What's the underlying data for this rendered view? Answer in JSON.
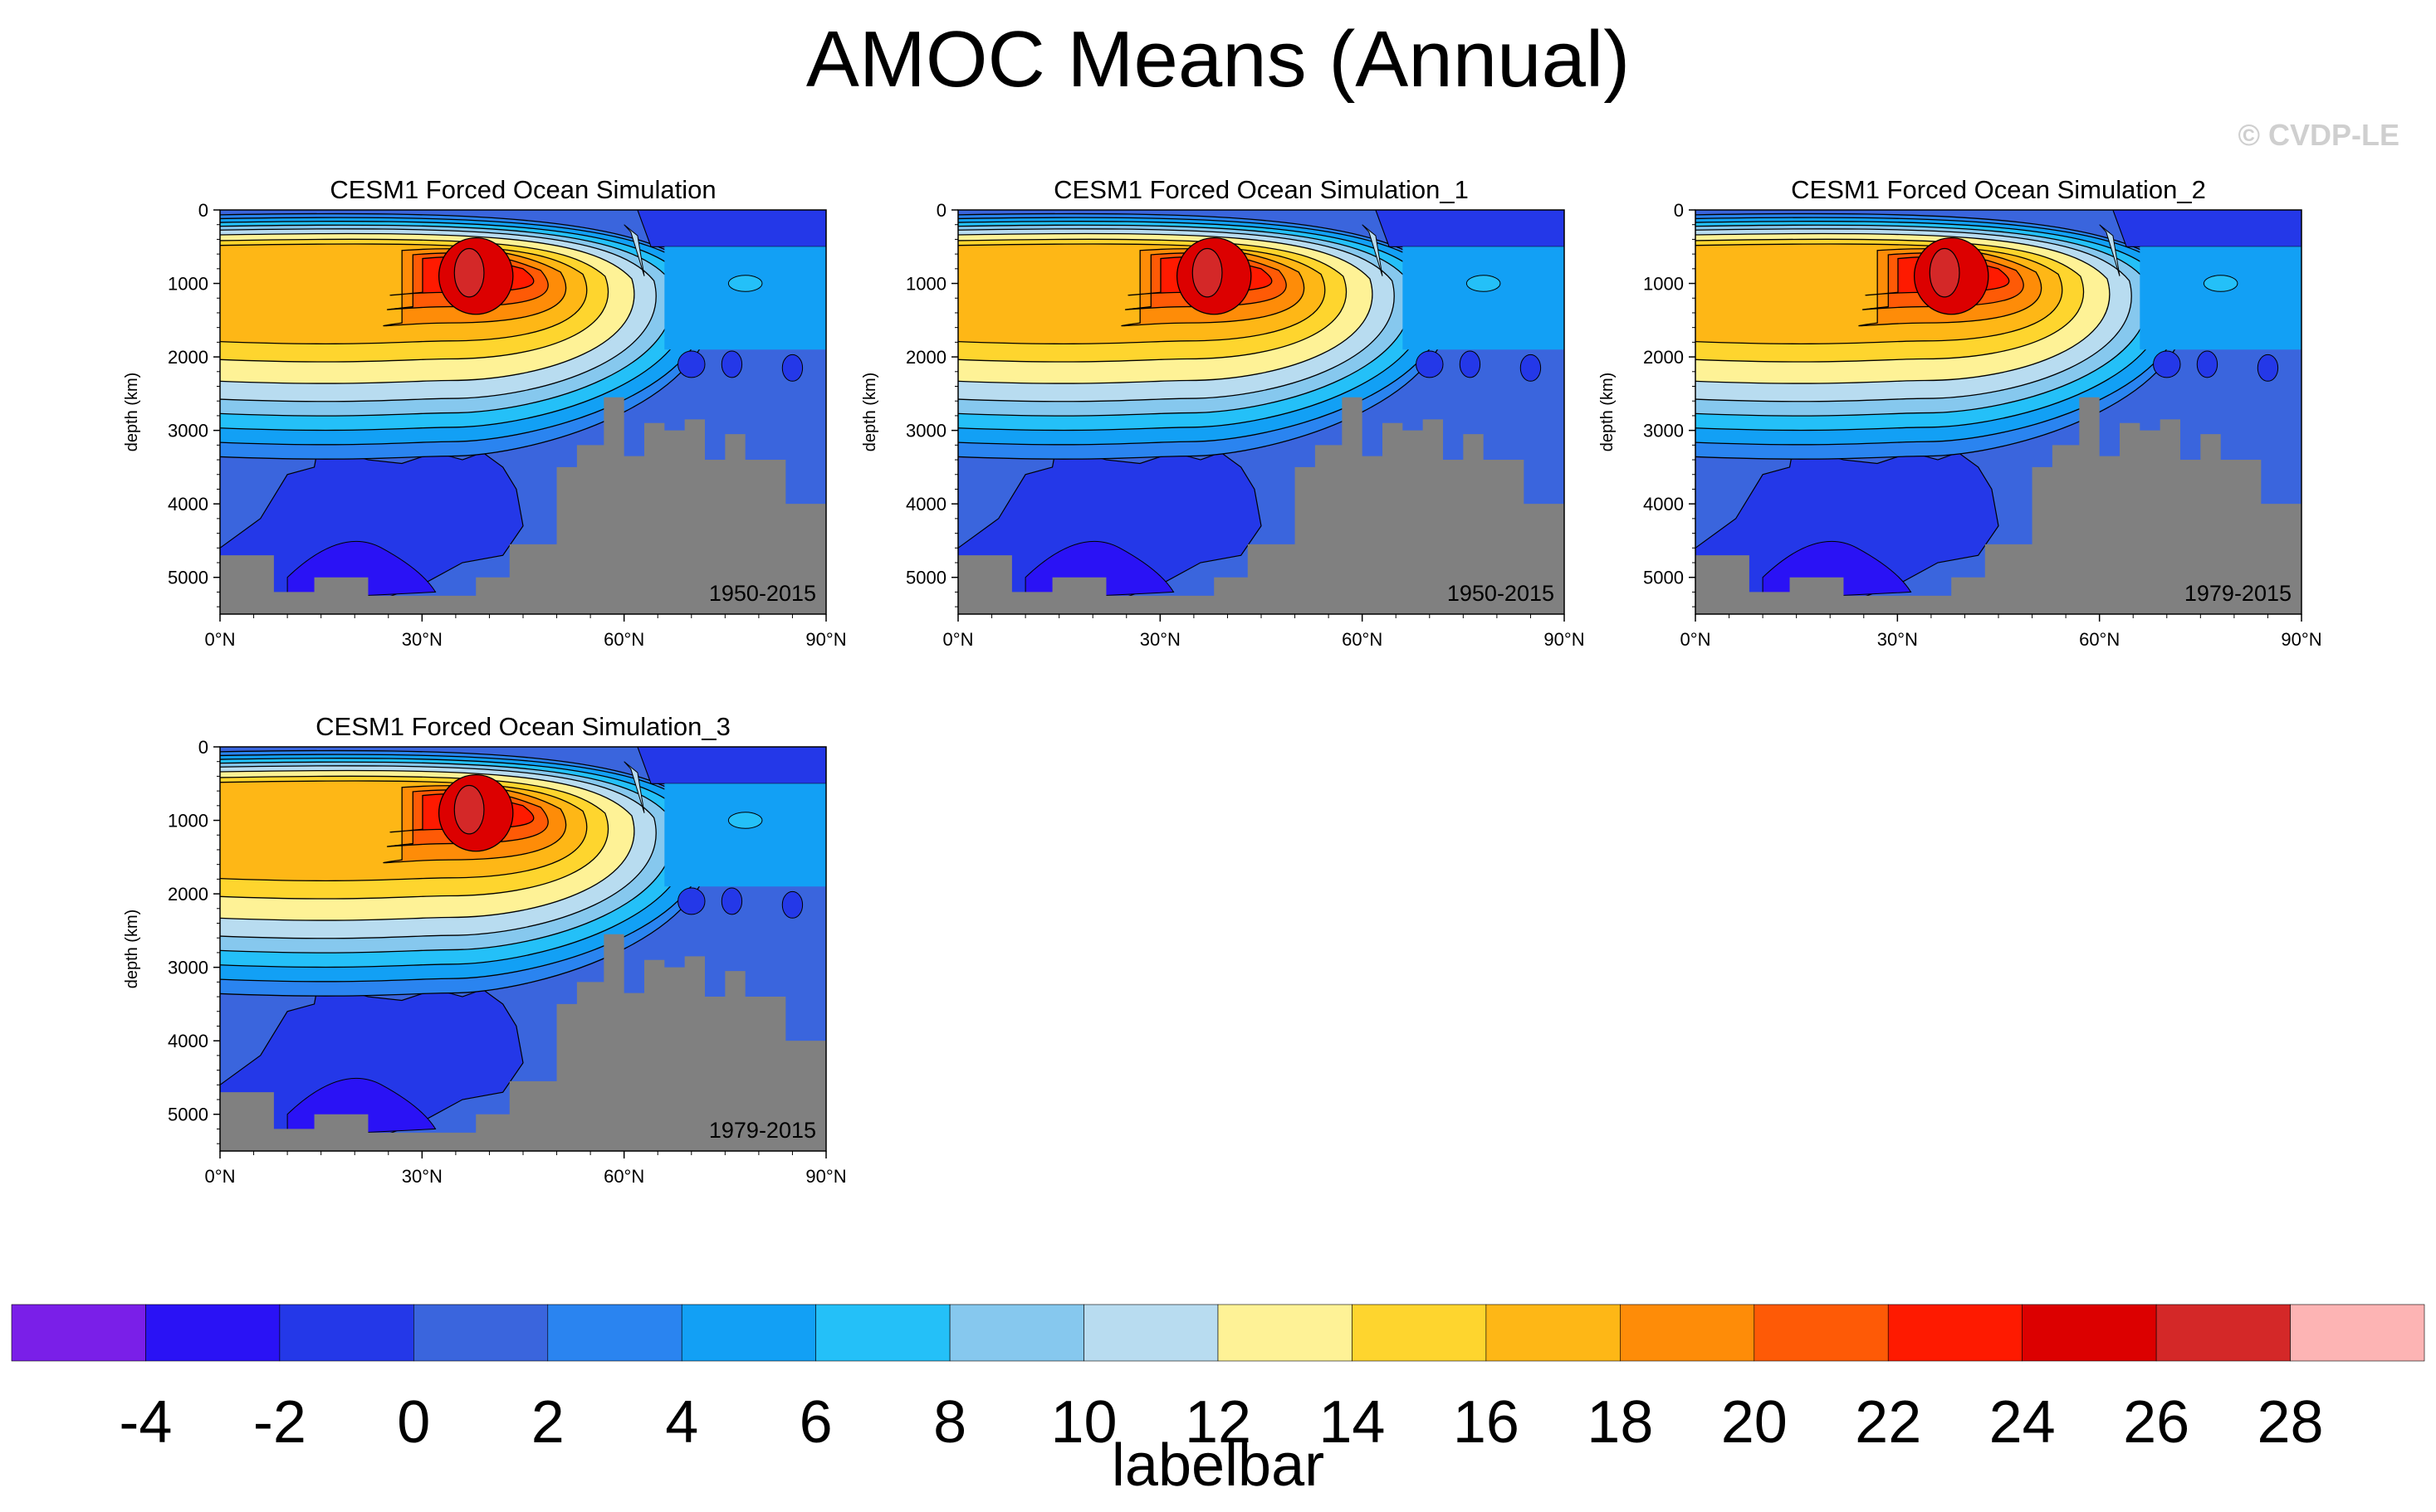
{
  "figure": {
    "title": "AMOC Means (Annual)",
    "watermark": "© CVDP-LE"
  },
  "chart_data": [
    {
      "type": "heatmap",
      "title": "CESM1 Forced Ocean Simulation",
      "period": "1950-2015",
      "xlabel": "",
      "ylabel": "depth (km)",
      "xlim": [
        0,
        90
      ],
      "ylim": [
        5500,
        0
      ],
      "xticks": [
        "0°N",
        "30°N",
        "60°N",
        "90°N"
      ],
      "yticks": [
        "0",
        "1000",
        "2000",
        "3000",
        "4000",
        "5000"
      ],
      "max_overturning": {
        "lat": 38,
        "depth": 900,
        "value": 24
      }
    },
    {
      "type": "heatmap",
      "title": "CESM1 Forced Ocean Simulation_1",
      "period": "1950-2015",
      "xlabel": "",
      "ylabel": "depth (km)",
      "xlim": [
        0,
        90
      ],
      "ylim": [
        5500,
        0
      ],
      "xticks": [
        "0°N",
        "30°N",
        "60°N",
        "90°N"
      ],
      "yticks": [
        "0",
        "1000",
        "2000",
        "3000",
        "4000",
        "5000"
      ],
      "max_overturning": {
        "lat": 38,
        "depth": 900,
        "value": 24
      }
    },
    {
      "type": "heatmap",
      "title": "CESM1 Forced Ocean Simulation_2",
      "period": "1979-2015",
      "xlabel": "",
      "ylabel": "depth (km)",
      "xlim": [
        0,
        90
      ],
      "ylim": [
        5500,
        0
      ],
      "xticks": [
        "0°N",
        "30°N",
        "60°N",
        "90°N"
      ],
      "yticks": [
        "0",
        "1000",
        "2000",
        "3000",
        "4000",
        "5000"
      ],
      "max_overturning": {
        "lat": 38,
        "depth": 900,
        "value": 24
      }
    },
    {
      "type": "heatmap",
      "title": "CESM1 Forced Ocean Simulation_3",
      "period": "1979-2015",
      "xlabel": "",
      "ylabel": "depth (km)",
      "xlim": [
        0,
        90
      ],
      "ylim": [
        5500,
        0
      ],
      "xticks": [
        "0°N",
        "30°N",
        "60°N",
        "90°N"
      ],
      "yticks": [
        "0",
        "1000",
        "2000",
        "3000",
        "4000",
        "5000"
      ],
      "max_overturning": {
        "lat": 38,
        "depth": 900,
        "value": 24
      }
    }
  ],
  "colorbar": {
    "label": "labelbar",
    "ticks": [
      "-4",
      "-2",
      "0",
      "2",
      "4",
      "6",
      "8",
      "10",
      "12",
      "14",
      "16",
      "18",
      "20",
      "22",
      "24",
      "26",
      "28"
    ],
    "colors": [
      "#7a1fe8",
      "#2a12f5",
      "#2438e8",
      "#3a65dd",
      "#2a84f0",
      "#12a0f5",
      "#24c0f8",
      "#86c8ee",
      "#b8dcf0",
      "#fef296",
      "#fed52e",
      "#feb716",
      "#fe8c08",
      "#fe5a06",
      "#fe1a00",
      "#dc0000",
      "#d42828",
      "#fdb4b4"
    ]
  },
  "colors": {
    "land": "#808080",
    "contour_line": "#000000"
  }
}
